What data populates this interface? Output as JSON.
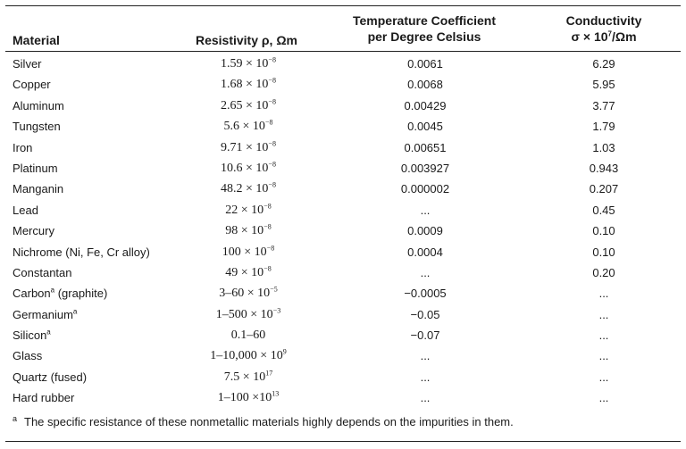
{
  "table": {
    "headers": {
      "material": "Material",
      "resistivity": "Resistivity ρ, Ωm",
      "temp_line1": "Temperature Coefficient",
      "temp_line2": "per Degree Celsius",
      "cond_line1": "Conductivity",
      "cond_line2_base": "σ × 10",
      "cond_line2_exp": "7",
      "cond_line2_tail": "/Ωm"
    },
    "rows": [
      {
        "material": "Silver",
        "mat_sup": "",
        "res_base": "1.59 × 10",
        "res_exp": "−8",
        "temp": "0.0061",
        "cond": "6.29"
      },
      {
        "material": "Copper",
        "mat_sup": "",
        "res_base": "1.68 × 10",
        "res_exp": "−8",
        "temp": "0.0068",
        "cond": "5.95"
      },
      {
        "material": "Aluminum",
        "mat_sup": "",
        "res_base": "2.65 × 10",
        "res_exp": "−8",
        "temp": "0.00429",
        "cond": "3.77"
      },
      {
        "material": "Tungsten",
        "mat_sup": "",
        "res_base": "5.6 × 10",
        "res_exp": "−8",
        "temp": "0.0045",
        "cond": "1.79"
      },
      {
        "material": "Iron",
        "mat_sup": "",
        "res_base": "9.71 × 10",
        "res_exp": "−8",
        "temp": "0.00651",
        "cond": "1.03"
      },
      {
        "material": "Platinum",
        "mat_sup": "",
        "res_base": "10.6 × 10",
        "res_exp": "−8",
        "temp": "0.003927",
        "cond": "0.943"
      },
      {
        "material": "Manganin",
        "mat_sup": "",
        "res_base": "48.2 × 10",
        "res_exp": "−8",
        "temp": "0.000002",
        "cond": "0.207"
      },
      {
        "material": "Lead",
        "mat_sup": "",
        "res_base": "22 × 10",
        "res_exp": "−8",
        "temp": "...",
        "cond": "0.45"
      },
      {
        "material": "Mercury",
        "mat_sup": "",
        "res_base": "98 × 10",
        "res_exp": "−8",
        "temp": "0.0009",
        "cond": "0.10"
      },
      {
        "material": "Nichrome (Ni, Fe, Cr alloy)",
        "mat_sup": "",
        "res_base": "100 × 10",
        "res_exp": "−8",
        "temp": "0.0004",
        "cond": "0.10"
      },
      {
        "material": "Constantan",
        "mat_sup": "",
        "res_base": "49 × 10",
        "res_exp": "−8",
        "temp": "...",
        "cond": "0.20"
      },
      {
        "material": "Carbon",
        "mat_sup": "a",
        "mat_suffix": " (graphite)",
        "res_base": "3–60 × 10",
        "res_exp": "−5",
        "temp": "−0.0005",
        "cond": "..."
      },
      {
        "material": "Germanium",
        "mat_sup": "a",
        "mat_suffix": "",
        "res_base": "1–500 × 10",
        "res_exp": "−3",
        "temp": "−0.05",
        "cond": "..."
      },
      {
        "material": "Silicon",
        "mat_sup": "a",
        "mat_suffix": "",
        "res_base": "0.1–60",
        "res_exp": "",
        "temp": "−0.07",
        "cond": "..."
      },
      {
        "material": "Glass",
        "mat_sup": "",
        "res_base": "1–10,000 × 10",
        "res_exp": "9",
        "temp": "...",
        "cond": "..."
      },
      {
        "material": "Quartz (fused)",
        "mat_sup": "",
        "res_base": "7.5 × 10",
        "res_exp": "17",
        "temp": "...",
        "cond": "..."
      },
      {
        "material": "Hard rubber",
        "mat_sup": "",
        "res_base": "1–100 ×10",
        "res_exp": "13",
        "temp": "...",
        "cond": "..."
      }
    ]
  },
  "footnote": {
    "mark": "a",
    "text": "The specific resistance of these nonmetallic materials highly depends on the impurities in them."
  }
}
